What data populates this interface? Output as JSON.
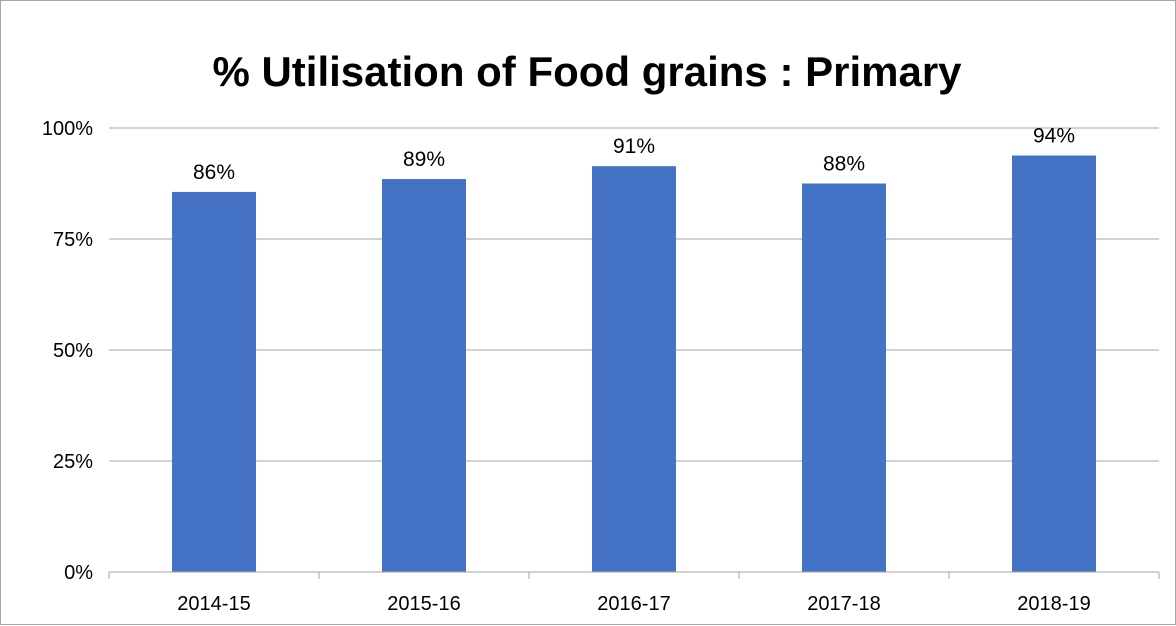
{
  "chart_data": {
    "type": "bar",
    "title": "% Utilisation of Food grains : Primary",
    "xlabel": "",
    "ylabel": "",
    "categories": [
      "2014-15",
      "2015-16",
      "2016-17",
      "2017-18",
      "2018-19"
    ],
    "values": [
      86,
      89,
      91,
      88,
      94
    ],
    "data_labels": [
      "86%",
      "89%",
      "91%",
      "88%",
      "94%"
    ],
    "bar_heights_percent": [
      85.6,
      88.5,
      91.4,
      87.5,
      93.8
    ],
    "ylim": [
      0,
      100
    ],
    "yticks": [
      0,
      25,
      50,
      75,
      100
    ],
    "ytick_labels": [
      "0%",
      "25%",
      "50%",
      "75%",
      "100%"
    ],
    "grid": true,
    "legend": "none",
    "colors": {
      "bar": "#4472c4",
      "grid": "#a6a6a6",
      "axis": "#a6a6a6",
      "text": "#000000"
    }
  }
}
